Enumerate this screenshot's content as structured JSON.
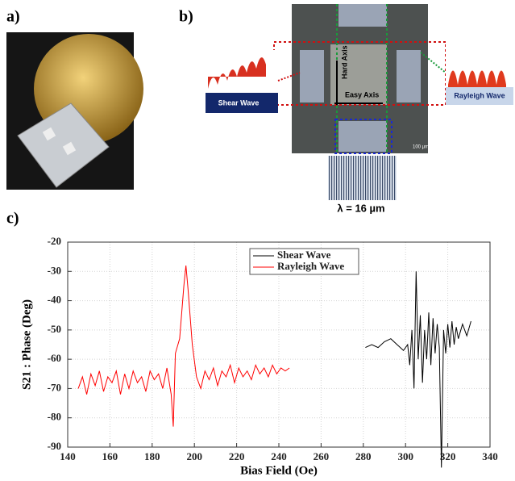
{
  "panels": {
    "a": {
      "label": "a)"
    },
    "b": {
      "label": "b)",
      "shear_label": "Shear Wave",
      "rayleigh_label": "Rayleigh Wave",
      "hard_axis": "Hard Axis",
      "easy_axis": "Easy Axis",
      "scale_bar": "100 µm",
      "wavelength": "λ = 16 µm"
    },
    "c": {
      "label": "c)"
    }
  },
  "chart_data": {
    "type": "line",
    "xlabel": "Bias Field (Oe)",
    "ylabel": "S21 : Phase (Deg)",
    "xlim": [
      140,
      340
    ],
    "xticks": [
      140,
      160,
      180,
      200,
      220,
      240,
      260,
      280,
      300,
      320,
      340
    ],
    "ylim": [
      -90,
      -20
    ],
    "yticks": [
      -90,
      -80,
      -70,
      -60,
      -50,
      -40,
      -30,
      -20
    ],
    "grid": true,
    "legend": "top",
    "series": [
      {
        "name": "Shear Wave",
        "color": "#000000",
        "x": [
          281,
          284,
          287,
          290,
          293,
          296,
          299,
          301,
          302,
          303,
          304,
          305,
          306,
          307,
          308,
          309,
          310,
          311,
          312,
          313,
          314,
          315,
          316,
          317,
          318,
          319,
          320,
          321,
          322,
          323,
          324,
          325,
          327,
          329,
          331
        ],
        "values": [
          -56,
          -55,
          -56,
          -54,
          -53,
          -55,
          -57,
          -55,
          -62,
          -50,
          -70,
          -30,
          -60,
          -45,
          -68,
          -50,
          -60,
          -44,
          -62,
          -46,
          -58,
          -48,
          -56,
          -97,
          -50,
          -58,
          -48,
          -56,
          -47,
          -55,
          -49,
          -53,
          -48,
          -52,
          -47
        ]
      },
      {
        "name": "Rayleigh Wave",
        "color": "#ff0000",
        "x": [
          145,
          147,
          149,
          151,
          153,
          155,
          157,
          159,
          161,
          163,
          165,
          167,
          169,
          171,
          173,
          175,
          177,
          179,
          181,
          183,
          185,
          187,
          189,
          190,
          191,
          193,
          195,
          196,
          197,
          199,
          201,
          203,
          205,
          207,
          209,
          211,
          213,
          215,
          217,
          219,
          221,
          223,
          225,
          227,
          229,
          231,
          233,
          235,
          237,
          239,
          241,
          243,
          245
        ],
        "values": [
          -70,
          -66,
          -72,
          -65,
          -69,
          -64,
          -71,
          -66,
          -68,
          -64,
          -72,
          -65,
          -70,
          -64,
          -68,
          -66,
          -71,
          -64,
          -67,
          -65,
          -70,
          -63,
          -72,
          -83,
          -58,
          -53,
          -35,
          -28,
          -36,
          -55,
          -66,
          -70,
          -64,
          -67,
          -63,
          -69,
          -64,
          -66,
          -62,
          -68,
          -63,
          -66,
          -64,
          -67,
          -62,
          -65,
          -63,
          -66,
          -62,
          -65,
          -63,
          -64,
          -63
        ]
      }
    ]
  }
}
